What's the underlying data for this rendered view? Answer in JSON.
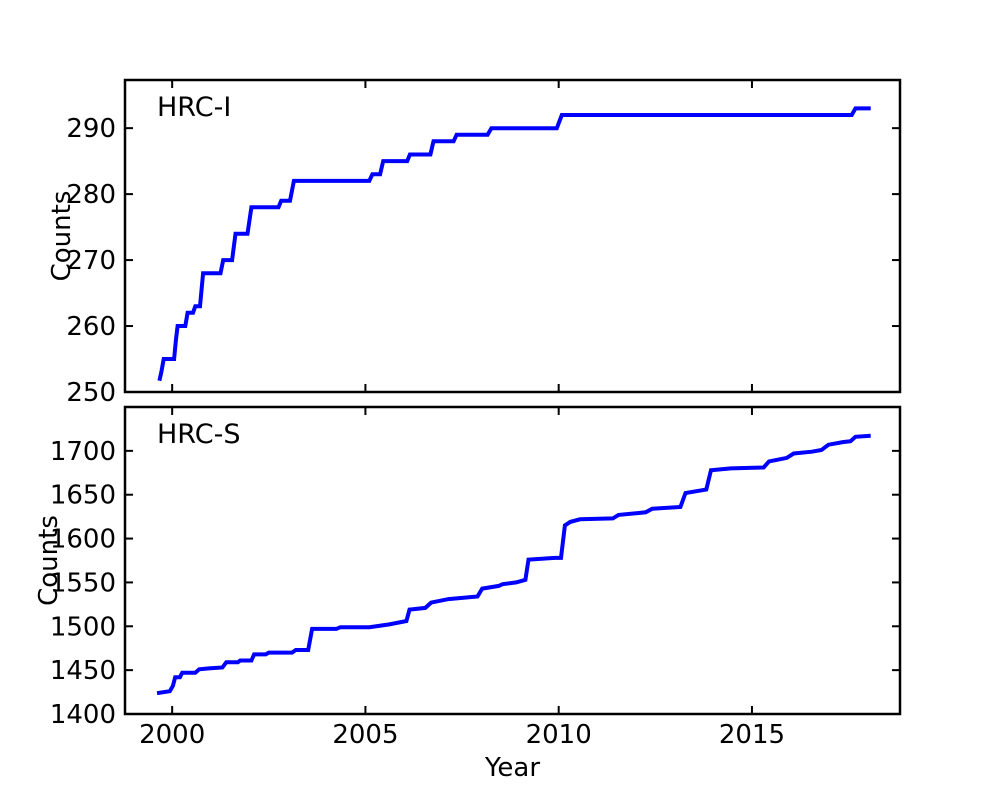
{
  "figure": {
    "background": "#ffffff",
    "xlabel": "Year",
    "xticks": [
      2000,
      2005,
      2010,
      2015
    ],
    "xlim": [
      1998.78,
      2018.83
    ],
    "line_color": "#0000ff",
    "spine_color": "#000000",
    "grid": "off",
    "legend": "none"
  },
  "chart_data": [
    {
      "type": "line",
      "style": "cumulative-step",
      "label": "HRC-I",
      "ylabel": "Counts",
      "ylim": [
        250,
        297.3
      ],
      "yticks": [
        250,
        260,
        270,
        280,
        290
      ],
      "xlim": [
        1998.78,
        2018.83
      ],
      "xticks": [
        2000,
        2005,
        2010,
        2015
      ],
      "series": [
        {
          "name": "HRC-I",
          "color": "#0000ff",
          "points": [
            [
              1999.68,
              252
            ],
            [
              1999.72,
              253
            ],
            [
              1999.78,
              255
            ],
            [
              2000.05,
              255
            ],
            [
              2000.1,
              258
            ],
            [
              2000.14,
              260
            ],
            [
              2000.34,
              260
            ],
            [
              2000.4,
              262
            ],
            [
              2000.54,
              262
            ],
            [
              2000.6,
              263
            ],
            [
              2000.72,
              263
            ],
            [
              2000.8,
              268
            ],
            [
              2001.25,
              268
            ],
            [
              2001.32,
              270
            ],
            [
              2001.55,
              270
            ],
            [
              2001.64,
              274
            ],
            [
              2001.95,
              274
            ],
            [
              2002.05,
              278
            ],
            [
              2002.75,
              278
            ],
            [
              2002.82,
              279
            ],
            [
              2003.05,
              279
            ],
            [
              2003.15,
              282
            ],
            [
              2005.1,
              282
            ],
            [
              2005.18,
              283
            ],
            [
              2005.38,
              283
            ],
            [
              2005.46,
              285
            ],
            [
              2006.08,
              285
            ],
            [
              2006.15,
              286
            ],
            [
              2006.68,
              286
            ],
            [
              2006.76,
              288
            ],
            [
              2007.28,
              288
            ],
            [
              2007.36,
              289
            ],
            [
              2008.16,
              289
            ],
            [
              2008.26,
              290
            ],
            [
              2009.95,
              290
            ],
            [
              2010.08,
              292
            ],
            [
              2017.58,
              292
            ],
            [
              2017.68,
              293
            ],
            [
              2018.02,
              293
            ]
          ]
        }
      ]
    },
    {
      "type": "line",
      "style": "cumulative-step",
      "label": "HRC-S",
      "ylabel": "Counts",
      "ylim": [
        1400,
        1750
      ],
      "yticks": [
        1400,
        1450,
        1500,
        1550,
        1600,
        1650,
        1700
      ],
      "xlim": [
        1998.78,
        2018.83
      ],
      "xticks": [
        2000,
        2005,
        2010,
        2015
      ],
      "series": [
        {
          "name": "HRC-S",
          "color": "#0000ff",
          "points": [
            [
              1999.66,
              1424
            ],
            [
              1999.94,
              1426
            ],
            [
              2000.02,
              1432
            ],
            [
              2000.08,
              1442
            ],
            [
              2000.2,
              1442
            ],
            [
              2000.26,
              1447
            ],
            [
              2000.6,
              1447
            ],
            [
              2000.7,
              1451
            ],
            [
              2000.95,
              1452
            ],
            [
              2001.3,
              1453
            ],
            [
              2001.4,
              1459
            ],
            [
              2001.7,
              1459
            ],
            [
              2001.76,
              1461
            ],
            [
              2002.05,
              1461
            ],
            [
              2002.12,
              1468
            ],
            [
              2002.42,
              1468
            ],
            [
              2002.5,
              1470
            ],
            [
              2003.1,
              1470
            ],
            [
              2003.2,
              1473
            ],
            [
              2003.52,
              1473
            ],
            [
              2003.62,
              1497
            ],
            [
              2004.25,
              1497
            ],
            [
              2004.35,
              1499
            ],
            [
              2005.1,
              1499
            ],
            [
              2005.6,
              1502
            ],
            [
              2005.95,
              1505
            ],
            [
              2006.06,
              1506
            ],
            [
              2006.14,
              1519
            ],
            [
              2006.55,
              1521
            ],
            [
              2006.7,
              1527
            ],
            [
              2007.15,
              1531
            ],
            [
              2007.9,
              1534
            ],
            [
              2008.02,
              1543
            ],
            [
              2008.45,
              1546
            ],
            [
              2008.55,
              1548
            ],
            [
              2008.9,
              1550
            ],
            [
              2009.06,
              1552
            ],
            [
              2009.14,
              1553
            ],
            [
              2009.22,
              1576
            ],
            [
              2009.9,
              1578
            ],
            [
              2010.06,
              1578
            ],
            [
              2010.16,
              1615
            ],
            [
              2010.3,
              1619
            ],
            [
              2010.55,
              1622
            ],
            [
              2011.4,
              1623
            ],
            [
              2011.55,
              1627
            ],
            [
              2012.25,
              1630
            ],
            [
              2012.42,
              1634
            ],
            [
              2013.15,
              1636
            ],
            [
              2013.28,
              1652
            ],
            [
              2013.7,
              1655
            ],
            [
              2013.82,
              1656
            ],
            [
              2013.94,
              1678
            ],
            [
              2014.45,
              1680
            ],
            [
              2015.3,
              1681
            ],
            [
              2015.44,
              1688
            ],
            [
              2015.9,
              1692
            ],
            [
              2016.08,
              1697
            ],
            [
              2016.55,
              1699
            ],
            [
              2016.8,
              1701
            ],
            [
              2016.98,
              1707
            ],
            [
              2017.35,
              1710
            ],
            [
              2017.55,
              1711
            ],
            [
              2017.68,
              1716
            ],
            [
              2018.02,
              1717
            ]
          ]
        }
      ]
    }
  ]
}
